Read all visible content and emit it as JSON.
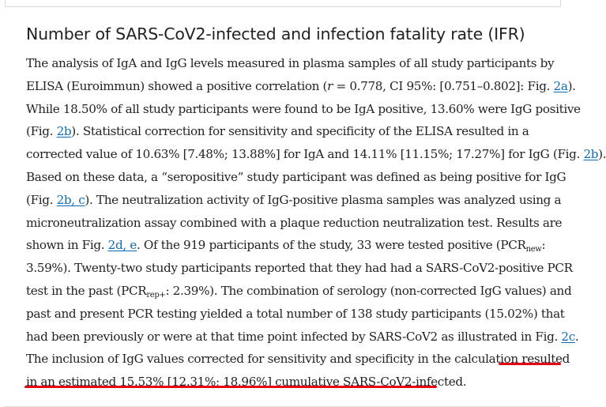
{
  "heading": "Number of SARS-CoV2-infected and infection fatality rate (IFR)",
  "lines": [
    [
      "The analysis of IgA and IgG levels measured in plasma samples of all study participants by"
    ],
    [
      "ELISA (Euroimmun) showed a positive correlation (",
      "r",
      " = 0.778, CI 95%: [0.751–0.802]: Fig. ",
      "2a",
      ")."
    ],
    [
      "While 18.50% of all study participants were found to be IgA positive, 13.60% were IgG positive"
    ],
    [
      "(Fig. ",
      "2b",
      "). Statistical correction for sensitivity and specificity of the ELISA resulted in a"
    ],
    [
      "corrected value of 10.63% [7.48%; 13.88%] for IgA and 14.11% [11.15%; 17.27%] for IgG (Fig. ",
      "2b",
      ")."
    ],
    [
      "Based on these data, a “seropositive” study participant was defined as being positive for IgG"
    ],
    [
      "(Fig. ",
      "2b, c",
      "). The neutralization activity of IgG-positive plasma samples was analyzed using a"
    ],
    [
      "microneutralization assay combined with a plaque reduction neutralization test. Results are"
    ],
    [
      "shown in Fig. ",
      "2d, e",
      ". Of the 919 participants of the study, 33 were tested positive (PCR",
      "new",
      ":"
    ],
    [
      "3.59%). Twenty-two study participants reported that they had had a SARS-CoV2-positive PCR"
    ],
    [
      "test in the past (PCR",
      "rep+",
      ": 2.39%). The combination of serology (non-corrected IgG values) and"
    ],
    [
      "past and present PCR testing yielded a total number of 138 study participants (15.02%) that"
    ],
    [
      "had been previously or were at that time point infected by SARS-CoV2 as illustrated in Fig. ",
      "2c",
      "."
    ],
    [
      "The inclusion of IgG values corrected for sensitivity and specificity in the calculation resulted"
    ],
    [
      "in an estimated 15.53% [12.31%; 18.96%] cumulative SARS-CoV2-infected."
    ]
  ],
  "highlight_color": "#e30613",
  "link_color": "#0c6bb6"
}
